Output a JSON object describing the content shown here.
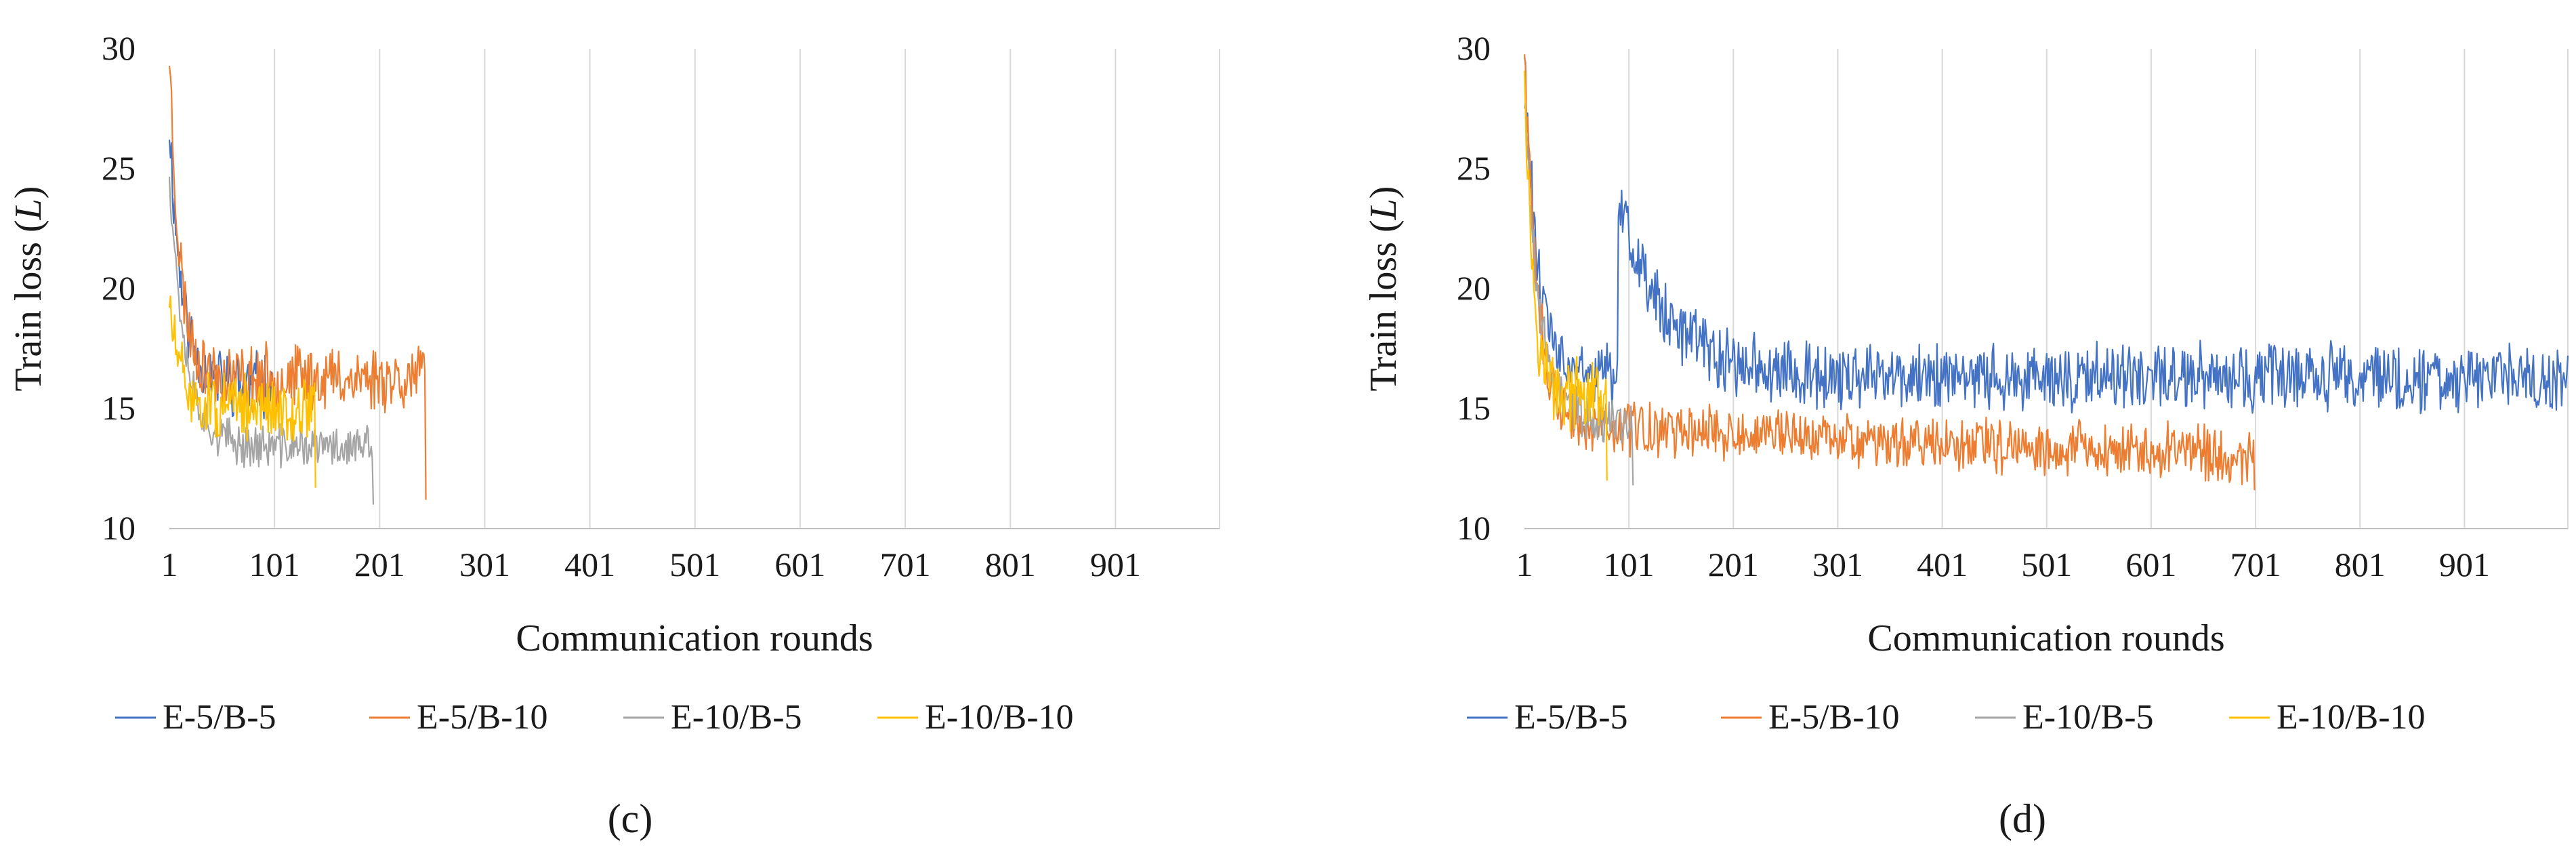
{
  "chart_data": [
    {
      "type": "line",
      "panel_label": "(c)",
      "xlabel": "Communication rounds",
      "ylabel": "Train loss (L)",
      "ylabel_parts": {
        "before": "Train loss (",
        "italic": "L",
        "after": ")"
      },
      "xlim": [
        1,
        1000
      ],
      "ylim": [
        10,
        30
      ],
      "x_ticks": [
        1,
        101,
        201,
        301,
        401,
        501,
        601,
        701,
        801,
        901
      ],
      "y_ticks": [
        10,
        15,
        20,
        25,
        30
      ],
      "grid": "vertical",
      "legend_position": "bottom",
      "series": [
        {
          "name": "E-5/B-5",
          "color": "#4472C4",
          "length": 100,
          "start": 27,
          "end": 16.0,
          "tau": 12,
          "noise": 1.2,
          "seed": 11
        },
        {
          "name": "E-5/B-10",
          "color": "#ED7D31",
          "length": 245,
          "start": 30,
          "end": 16.3,
          "tau": 10,
          "noise": 1.2,
          "seed": 23,
          "drop_end": 11.2
        },
        {
          "name": "E-10/B-5",
          "color": "#A5A5A5",
          "length": 195,
          "start": 25,
          "end": 13.4,
          "tau": 15,
          "noise": 0.8,
          "seed": 37,
          "drop_end": 11.0
        },
        {
          "name": "E-10/B-10",
          "color": "#FFC000",
          "length": 140,
          "start": 19.5,
          "end": 15.0,
          "tau": 10,
          "noise": 1.2,
          "seed": 51,
          "drop_end": 11.7
        }
      ]
    },
    {
      "type": "line",
      "panel_label": "(d)",
      "xlabel": "Communication rounds",
      "ylabel": "Train loss (L)",
      "ylabel_parts": {
        "before": "Train loss (",
        "italic": "L",
        "after": ")"
      },
      "xlim": [
        1,
        1000
      ],
      "ylim": [
        10,
        30
      ],
      "x_ticks": [
        1,
        101,
        201,
        301,
        401,
        501,
        601,
        701,
        801,
        901
      ],
      "y_ticks": [
        10,
        15,
        20,
        25,
        30
      ],
      "grid": "vertical",
      "legend_position": "bottom",
      "series": [
        {
          "name": "E-5/B-5",
          "color": "#4472C4",
          "length": 1000,
          "start": 30,
          "end": 16.3,
          "tau": 12,
          "noise": 1.2,
          "seed": 61,
          "bump_at": 90,
          "bump_value": 23.5,
          "bump_tau": 45
        },
        {
          "name": "E-5/B-10",
          "color": "#ED7D31",
          "length": 700,
          "start": 30,
          "end": 14.3,
          "tau": 12,
          "noise": 1.0,
          "seed": 73,
          "slope": -0.0018,
          "drop_end": 11.6
        },
        {
          "name": "E-10/B-5",
          "color": "#A5A5A5",
          "length": 105,
          "start": 28,
          "end": 14.5,
          "tau": 14,
          "noise": 0.9,
          "seed": 89,
          "drop_end": 11.8
        },
        {
          "name": "E-10/B-10",
          "color": "#FFC000",
          "length": 80,
          "start": 30,
          "end": 15.5,
          "tau": 8,
          "noise": 1.3,
          "seed": 97,
          "drop_end": 12.0
        }
      ]
    }
  ]
}
